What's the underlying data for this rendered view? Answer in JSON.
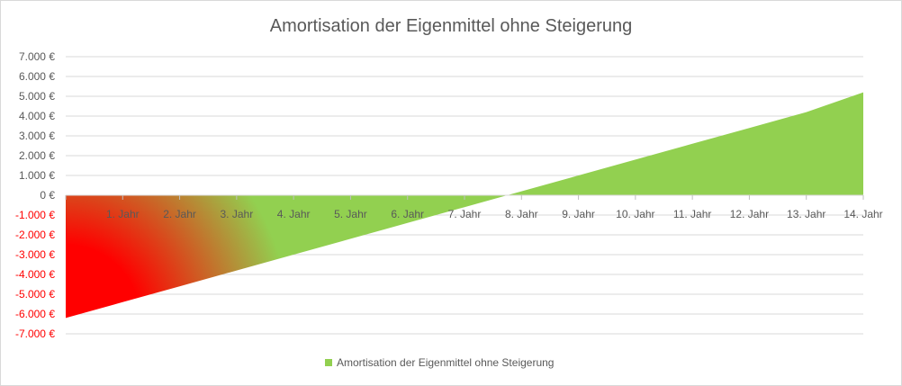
{
  "chart_data": {
    "type": "area",
    "title": "Amortisation der Eigenmittel ohne Steigerung",
    "xlabel": "",
    "ylabel": "",
    "categories": [
      "",
      "1. Jahr",
      "2. Jahr",
      "3. Jahr",
      "4. Jahr",
      "5. Jahr",
      "6. Jahr",
      "7. Jahr",
      "8. Jahr",
      "9. Jahr",
      "10. Jahr",
      "11. Jahr",
      "12. Jahr",
      "13. Jahr",
      "14. Jahr"
    ],
    "series": [
      {
        "name": "Amortisation der Eigenmittel ohne Steigerung",
        "values": [
          -6200,
          -5400,
          -4600,
          -3800,
          -3000,
          -2200,
          -1400,
          -600,
          200,
          1000,
          1800,
          2600,
          3400,
          4200,
          5200
        ]
      }
    ],
    "ylim": [
      -7000,
      7000
    ],
    "yticks": [
      7000,
      6000,
      5000,
      4000,
      3000,
      2000,
      1000,
      0,
      -1000,
      -2000,
      -3000,
      -4000,
      -5000,
      -6000,
      -7000
    ],
    "ytick_labels": [
      "7.000 €",
      "6.000 €",
      "5.000 €",
      "4.000 €",
      "3.000 €",
      "2.000 €",
      "1.000 €",
      "0 €",
      "-1.000 €",
      "-2.000 €",
      "-3.000 €",
      "-4.000 €",
      "-5.000 €",
      "-6.000 €",
      "-7.000 €"
    ],
    "grid": true,
    "legend_position": "bottom",
    "colors": {
      "positive_fill": "#92d050",
      "negative_fill_start": "#ff0000",
      "negative_label": "#ff0000",
      "text": "#595959",
      "grid": "#d9d9d9"
    }
  }
}
